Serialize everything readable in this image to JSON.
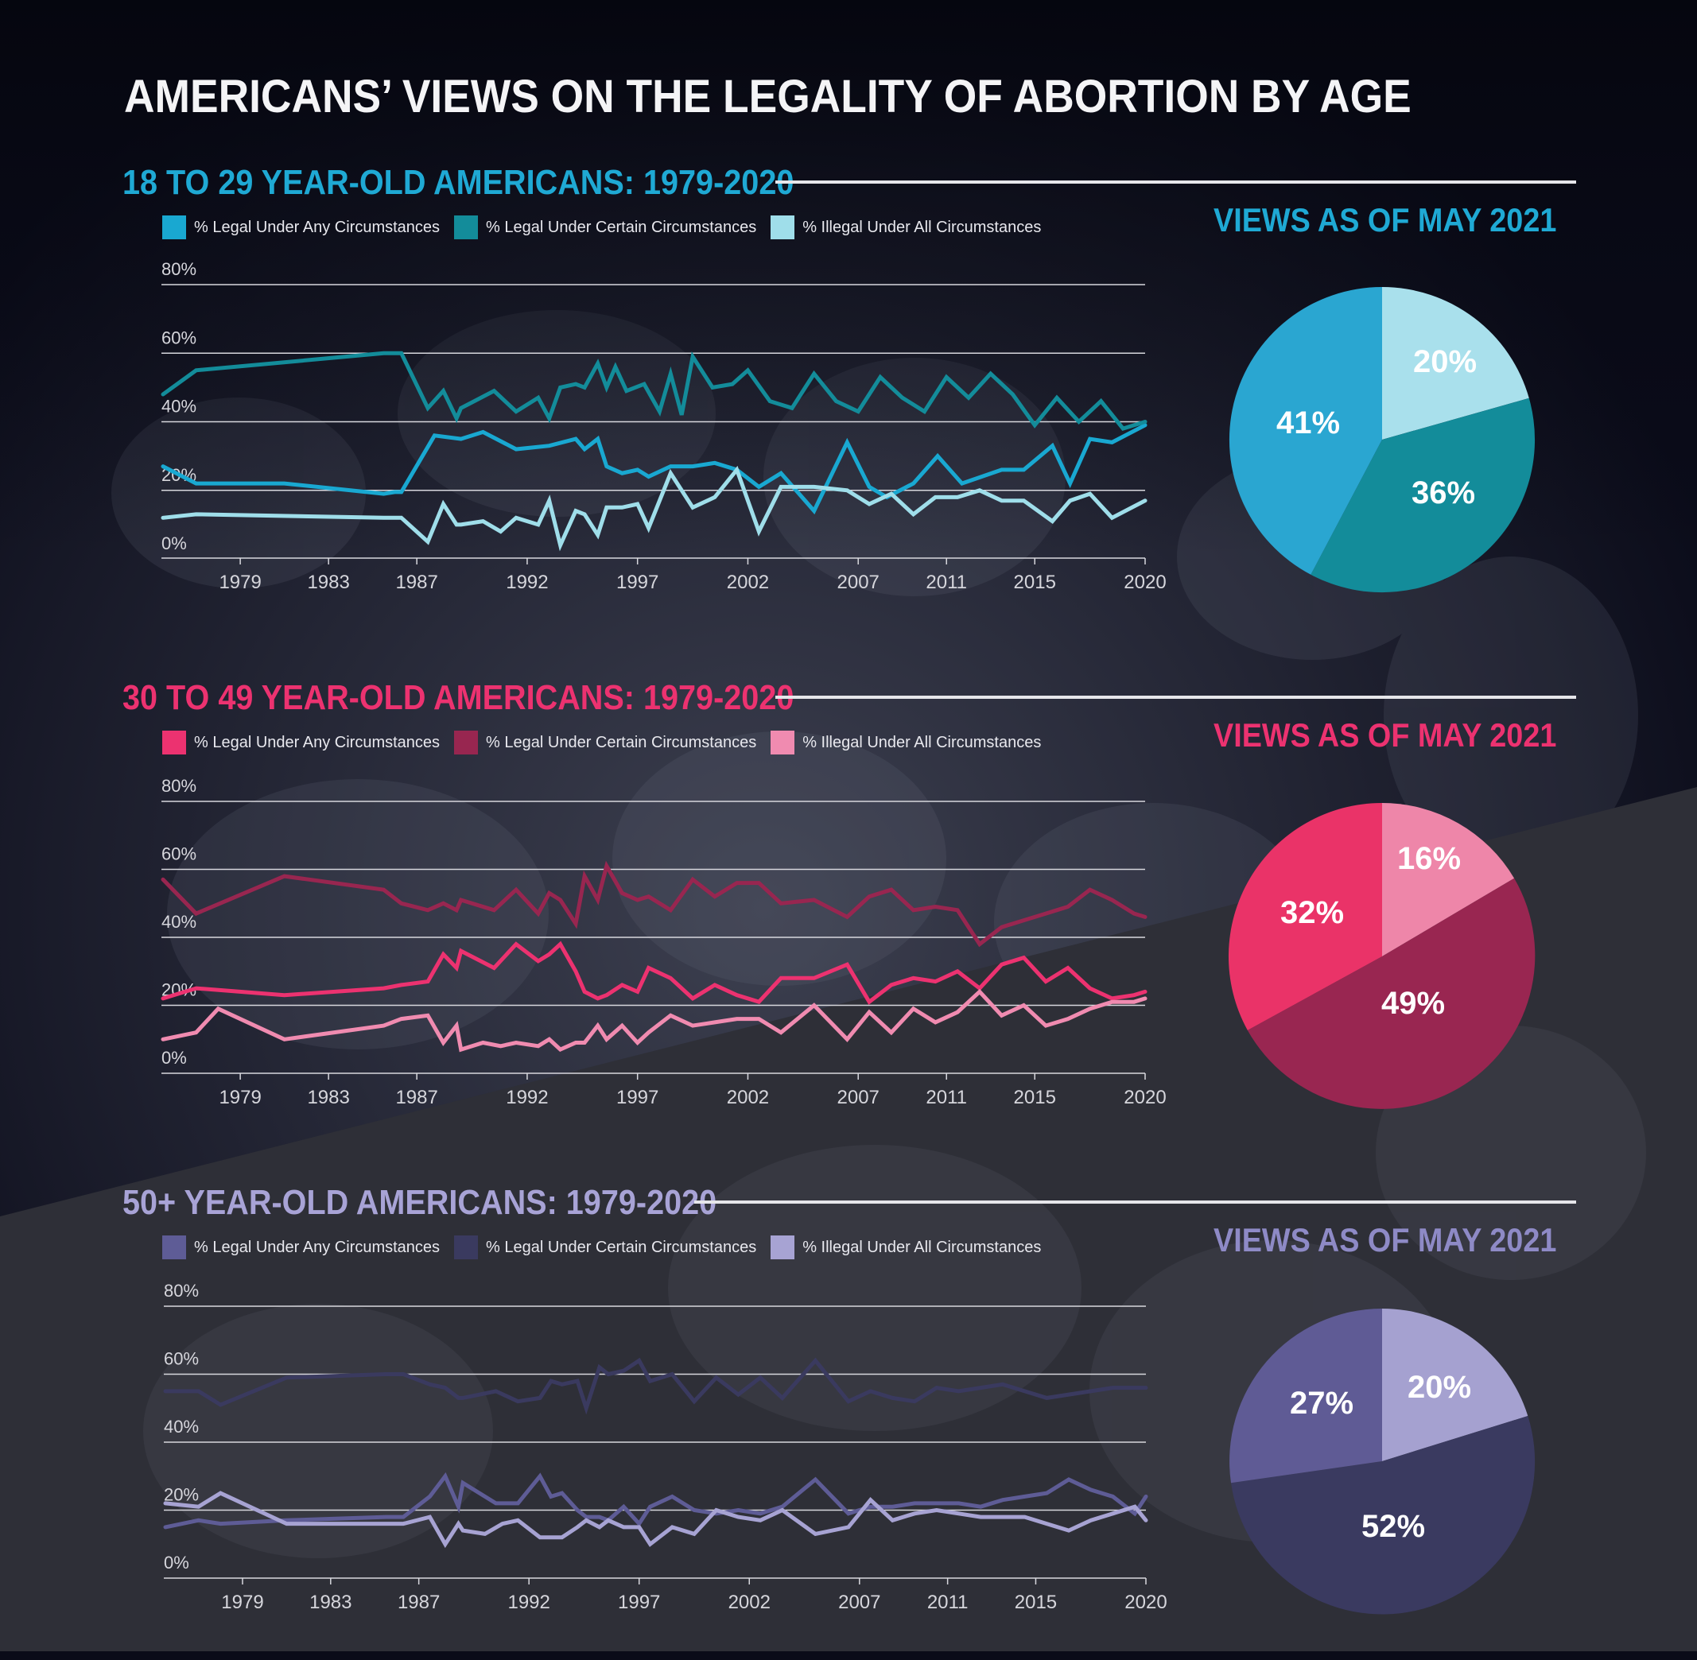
{
  "title": "AMERICANS’ VIEWS ON THE LEGALITY OF ABORTION BY AGE",
  "chart_data": [
    {
      "type": "line",
      "title": "18 TO 29 YEAR-OLD AMERICANS: 1979-2020",
      "legend_position": "top",
      "grid": true,
      "x_ticks": [
        1979,
        1983,
        1987,
        1992,
        1997,
        2002,
        2007,
        2011,
        2015,
        2020
      ],
      "ylim": [
        0,
        80
      ],
      "y_ticks": [
        "0%",
        "20%",
        "40%",
        "60%",
        "80%"
      ],
      "colors": [
        "#19a8d1",
        "#138c9a",
        "#9fdeea"
      ],
      "series": [
        {
          "name": "% Legal Under Any Circumstances",
          "x": [
            1975.5,
            1977.0,
            1981.0,
            1985.5,
            1986.0,
            1986.3,
            1987.8,
            1989.0,
            1990.0,
            1991.5,
            1993.0,
            1994.2,
            1994.6,
            1995.2,
            1995.6,
            1996.3,
            1997.0,
            1997.5,
            1998.5,
            1999.5,
            2000.5,
            2001.5,
            2002.5,
            2003.5,
            2005.0,
            2006.5,
            2007.5,
            2008.3,
            2009.5,
            2010.6,
            2011.7,
            2013.5,
            2014.5,
            2015.8,
            2016.6,
            2017.5,
            2018.5,
            2020.0
          ],
          "y": [
            27,
            22,
            22,
            19,
            19.5,
            19.5,
            36,
            35,
            37,
            32,
            33,
            35,
            32,
            35,
            27,
            25,
            26,
            24,
            27,
            27,
            28,
            26,
            21,
            25,
            14,
            34,
            21,
            18,
            22,
            30,
            22,
            26,
            26,
            33,
            22,
            35,
            34,
            39
          ]
        },
        {
          "name": "% Legal Under Certain Circumstances",
          "x": [
            1975.5,
            1977.0,
            1985.5,
            1986.3,
            1987.5,
            1988.2,
            1988.8,
            1989.0,
            1990.5,
            1991.5,
            1992.5,
            1993.0,
            1993.5,
            1994.2,
            1994.6,
            1995.2,
            1995.6,
            1996.0,
            1996.5,
            1997.3,
            1998.0,
            1998.5,
            1999.0,
            1999.5,
            2000.4,
            2001.3,
            2002.0,
            2003.0,
            2004.0,
            2005.0,
            2006.0,
            2007.0,
            2008.0,
            2009.0,
            2010.0,
            2011.0,
            2012.0,
            2013.0,
            2014.0,
            2015.0,
            2016.0,
            2017.0,
            2018.0,
            2019.0,
            2020.0
          ],
          "y": [
            48,
            55,
            60,
            60,
            44,
            49,
            41,
            44,
            49,
            43,
            47,
            41,
            50,
            51,
            50,
            57,
            50,
            56,
            49,
            51,
            43,
            54,
            42,
            59,
            50,
            51,
            55,
            46,
            44,
            54,
            46,
            43,
            53,
            47,
            43,
            53,
            47,
            54,
            48,
            39,
            47,
            40,
            46,
            38,
            40
          ]
        },
        {
          "name": "% Illegal Under All Circumstances",
          "x": [
            1975.5,
            1977.0,
            1985.5,
            1986.3,
            1987.5,
            1988.2,
            1988.8,
            1989.0,
            1990.0,
            1990.8,
            1991.5,
            1992.5,
            1993.0,
            1993.5,
            1994.2,
            1994.6,
            1995.2,
            1995.6,
            1996.3,
            1997.0,
            1997.5,
            1998.5,
            1999.5,
            2000.5,
            2001.5,
            2002.5,
            2003.5,
            2005.0,
            2006.5,
            2007.5,
            2008.5,
            2009.5,
            2010.5,
            2011.5,
            2012.5,
            2013.5,
            2014.5,
            2015.8,
            2016.6,
            2017.5,
            2018.5,
            2020.0
          ],
          "y": [
            12,
            13,
            12,
            12,
            5,
            16,
            10,
            10,
            11,
            8,
            12,
            10,
            17,
            4,
            14,
            13,
            7,
            15,
            15,
            16,
            9,
            25,
            15,
            18,
            26,
            8,
            21,
            21,
            20,
            16,
            19,
            13,
            18,
            18,
            20,
            17,
            17,
            11,
            17,
            19,
            12,
            17
          ]
        }
      ]
    },
    {
      "type": "pie",
      "title": "VIEWS AS OF MAY 2021",
      "categories": [
        "% Illegal Under All Circumstances",
        "% Legal Under Certain Circumstances",
        "% Legal Under Any Circumstances"
      ],
      "values": [
        20,
        36,
        41
      ],
      "labels": [
        "20%",
        "36%",
        "41%"
      ],
      "colors": [
        "#a9e0ec",
        "#138c9a",
        "#2aa6d1"
      ]
    },
    {
      "type": "line",
      "title": "30 TO 49 YEAR-OLD AMERICANS: 1979-2020",
      "legend_position": "top",
      "grid": true,
      "x_ticks": [
        1979,
        1983,
        1987,
        1992,
        1997,
        2002,
        2007,
        2011,
        2015,
        2020
      ],
      "ylim": [
        0,
        80
      ],
      "y_ticks": [
        "0%",
        "20%",
        "40%",
        "60%",
        "80%"
      ],
      "colors": [
        "#ec3270",
        "#982650",
        "#f08bb0"
      ],
      "series": [
        {
          "name": "% Legal Under Any Circumstances",
          "x": [
            1975.5,
            1977.0,
            1981.0,
            1985.5,
            1986.3,
            1987.5,
            1988.2,
            1988.8,
            1989.0,
            1990.5,
            1991.5,
            1992.5,
            1993.0,
            1993.5,
            1994.2,
            1994.6,
            1995.2,
            1995.6,
            1996.3,
            1997.0,
            1997.5,
            1998.5,
            1999.5,
            2000.5,
            2001.5,
            2002.5,
            2003.5,
            2005.0,
            2006.5,
            2007.5,
            2008.5,
            2009.5,
            2010.5,
            2011.5,
            2012.5,
            2013.5,
            2014.5,
            2015.5,
            2016.5,
            2017.5,
            2018.5,
            2019.5,
            2020.0
          ],
          "y": [
            22,
            25,
            23,
            25,
            26,
            27,
            35,
            31,
            36,
            31,
            38,
            33,
            35,
            38,
            30,
            24,
            22,
            23,
            26,
            24,
            31,
            28,
            22,
            26,
            23,
            21,
            28,
            28,
            32,
            21,
            26,
            28,
            27,
            30,
            25,
            32,
            34,
            27,
            31,
            25,
            22,
            23,
            24
          ]
        },
        {
          "name": "% Legal Under Certain Circumstances",
          "x": [
            1975.5,
            1977.0,
            1981.0,
            1985.5,
            1986.3,
            1987.5,
            1988.2,
            1988.8,
            1989.0,
            1990.5,
            1991.5,
            1992.5,
            1993.0,
            1993.5,
            1994.2,
            1994.6,
            1995.2,
            1995.6,
            1996.3,
            1997.0,
            1997.5,
            1998.5,
            1999.5,
            2000.5,
            2001.5,
            2002.5,
            2003.5,
            2005.0,
            2006.5,
            2007.5,
            2008.5,
            2009.5,
            2010.5,
            2011.5,
            2012.5,
            2013.5,
            2014.5,
            2015.5,
            2016.5,
            2017.5,
            2018.5,
            2019.5,
            2020.0
          ],
          "y": [
            57,
            47,
            58,
            54,
            50,
            48,
            50,
            48,
            51,
            48,
            54,
            47,
            53,
            51,
            44,
            58,
            51,
            61,
            53,
            51,
            52,
            48,
            57,
            52,
            56,
            56,
            50,
            51,
            46,
            52,
            54,
            48,
            49,
            48,
            38,
            43,
            45,
            47,
            49,
            54,
            51,
            47,
            46
          ]
        },
        {
          "name": "% Illegal Under All Circumstances",
          "x": [
            1975.5,
            1977.0,
            1978.0,
            1981.0,
            1985.5,
            1986.3,
            1987.5,
            1988.2,
            1988.8,
            1989.0,
            1990.0,
            1990.8,
            1991.5,
            1992.5,
            1993.0,
            1993.5,
            1994.2,
            1994.6,
            1995.2,
            1995.6,
            1996.3,
            1997.0,
            1997.5,
            1998.5,
            1999.5,
            2000.5,
            2001.5,
            2002.5,
            2003.5,
            2005.0,
            2006.5,
            2007.5,
            2008.5,
            2009.5,
            2010.5,
            2011.5,
            2012.5,
            2013.5,
            2014.5,
            2015.5,
            2016.5,
            2017.5,
            2018.5,
            2019.5,
            2020.0
          ],
          "y": [
            10,
            12,
            19,
            10,
            14,
            16,
            17,
            9,
            14,
            7,
            9,
            8,
            9,
            8,
            10,
            7,
            9,
            9,
            14,
            10,
            14,
            9,
            12,
            17,
            14,
            15,
            16,
            16,
            12,
            20,
            10,
            18,
            12,
            19,
            15,
            18,
            24,
            17,
            20,
            14,
            16,
            19,
            21,
            21,
            22
          ]
        }
      ]
    },
    {
      "type": "pie",
      "title": "VIEWS AS OF MAY 2021",
      "categories": [
        "% Illegal Under All Circumstances",
        "% Legal Under Certain Circumstances",
        "% Legal Under Any Circumstances"
      ],
      "values": [
        16,
        49,
        32
      ],
      "labels": [
        "16%",
        "49%",
        "32%"
      ],
      "colors": [
        "#ee86a9",
        "#992651",
        "#ea3368"
      ]
    },
    {
      "type": "line",
      "title": "50+ YEAR-OLD AMERICANS: 1979-2020",
      "legend_position": "top",
      "grid": true,
      "x_ticks": [
        1979,
        1983,
        1987,
        1992,
        1997,
        2002,
        2007,
        2011,
        2015,
        2020
      ],
      "ylim": [
        0,
        80
      ],
      "y_ticks": [
        "0%",
        "20%",
        "40%",
        "60%",
        "80%"
      ],
      "colors": [
        "#5e5c96",
        "#3a3a5f",
        "#a7a3d3"
      ],
      "series": [
        {
          "name": "% Legal Under Any Circumstances",
          "x": [
            1975.5,
            1977.0,
            1978.0,
            1981.0,
            1985.5,
            1986.3,
            1987.5,
            1988.2,
            1988.8,
            1989.0,
            1990.5,
            1991.5,
            1992.5,
            1993.0,
            1993.5,
            1994.2,
            1994.6,
            1995.2,
            1995.6,
            1996.3,
            1997.0,
            1997.5,
            1998.5,
            1999.5,
            2000.5,
            2001.5,
            2002.5,
            2003.5,
            2005.0,
            2006.5,
            2007.5,
            2008.5,
            2009.5,
            2010.5,
            2011.5,
            2012.5,
            2013.5,
            2014.5,
            2015.5,
            2016.5,
            2017.5,
            2018.5,
            2019.5,
            2020.0
          ],
          "y": [
            15,
            17,
            16,
            17,
            18,
            18,
            24,
            30,
            21,
            28,
            22,
            22,
            30,
            24,
            25,
            20,
            18,
            18,
            17,
            21,
            16,
            21,
            24,
            20,
            19,
            20,
            19,
            21,
            29,
            19,
            21,
            21,
            22,
            22,
            22,
            21,
            23,
            24,
            25,
            29,
            26,
            24,
            19,
            24
          ]
        },
        {
          "name": "% Legal Under Certain Circumstances",
          "x": [
            1975.5,
            1977.0,
            1978.0,
            1981.0,
            1985.5,
            1986.3,
            1987.5,
            1988.2,
            1988.8,
            1989.0,
            1990.5,
            1991.5,
            1992.5,
            1993.0,
            1993.5,
            1994.2,
            1994.6,
            1995.2,
            1995.6,
            1996.3,
            1997.0,
            1997.5,
            1998.5,
            1999.5,
            2000.5,
            2001.5,
            2002.5,
            2003.5,
            2005.0,
            2006.5,
            2007.5,
            2008.5,
            2009.5,
            2010.5,
            2011.5,
            2012.5,
            2013.5,
            2014.5,
            2015.5,
            2016.5,
            2017.5,
            2018.5,
            2019.5,
            2020.0
          ],
          "y": [
            55,
            55,
            51,
            59,
            60,
            60,
            57,
            56,
            53,
            53,
            55,
            52,
            53,
            58,
            57,
            58,
            50,
            62,
            60,
            61,
            64,
            58,
            60,
            52,
            59,
            54,
            59,
            53,
            64,
            52,
            55,
            53,
            52,
            56,
            55,
            56,
            57,
            55,
            53,
            54,
            55,
            56,
            56,
            56
          ]
        },
        {
          "name": "% Illegal Under All Circumstances",
          "x": [
            1975.5,
            1977.0,
            1978.0,
            1981.0,
            1985.5,
            1986.3,
            1987.5,
            1988.2,
            1988.8,
            1989.0,
            1990.0,
            1990.8,
            1991.5,
            1992.5,
            1993.0,
            1993.5,
            1994.2,
            1994.6,
            1995.2,
            1995.6,
            1996.3,
            1997.0,
            1997.5,
            1998.5,
            1999.5,
            2000.5,
            2001.5,
            2002.5,
            2003.5,
            2005.0,
            2006.5,
            2007.5,
            2008.5,
            2009.5,
            2010.5,
            2011.5,
            2012.5,
            2013.5,
            2014.5,
            2015.5,
            2016.5,
            2017.5,
            2018.5,
            2019.5,
            2020.0
          ],
          "y": [
            22,
            21,
            25,
            16,
            16,
            16,
            18,
            10,
            16,
            14,
            13,
            16,
            17,
            12,
            12,
            12,
            15,
            17,
            15,
            17,
            15,
            15,
            10,
            15,
            13,
            20,
            18,
            17,
            20,
            13,
            15,
            23,
            17,
            19,
            20,
            19,
            18,
            18,
            18,
            16,
            14,
            17,
            19,
            21,
            17
          ]
        }
      ]
    },
    {
      "type": "pie",
      "title": "VIEWS AS OF MAY 2021",
      "categories": [
        "% Illegal Under All Circumstances",
        "% Legal Under Certain Circumstances",
        "% Legal Under Any Circumstances"
      ],
      "values": [
        20,
        52,
        27
      ],
      "labels": [
        "20%",
        "52%",
        "27%"
      ],
      "colors": [
        "#a5a1d0",
        "#3a3a60",
        "#5f5b95"
      ]
    }
  ]
}
